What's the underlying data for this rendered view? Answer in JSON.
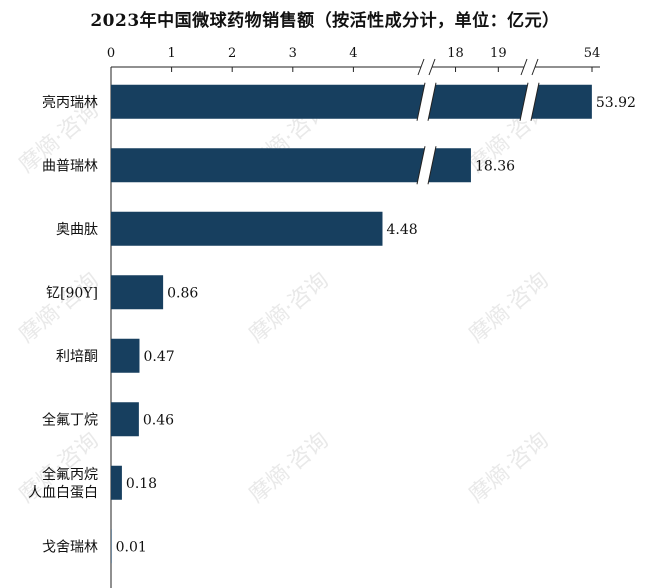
{
  "title": "2023年中国微球药物销售额（按活性成分计，单位：亿元）",
  "watermark": "摩熵·咨询",
  "chart_data": {
    "type": "bar",
    "orientation": "horizontal",
    "title": "2023年中国微球药物销售额（按活性成分计，单位：亿元）",
    "unit": "亿元",
    "axis_breaks": true,
    "x_ticks": [
      "0",
      "1",
      "2",
      "3",
      "4",
      "18",
      "19",
      "54"
    ],
    "categories": [
      "亮丙瑞林",
      "曲普瑞林",
      "奥曲肽",
      "钇[90Y]",
      "利培酮",
      "全氟丁烷",
      [
        "全氟丙烷",
        "人血白蛋白"
      ],
      "戈舍瑞林"
    ],
    "values": [
      53.92,
      18.36,
      4.48,
      0.86,
      0.47,
      0.46,
      0.18,
      0.01
    ],
    "data_labels": [
      "53.92",
      "18.36",
      "4.48",
      "0.86",
      "0.47",
      "0.46",
      "0.18",
      "0.01"
    ],
    "bar_color": "#173f5f",
    "grid": false,
    "legend": "none"
  }
}
